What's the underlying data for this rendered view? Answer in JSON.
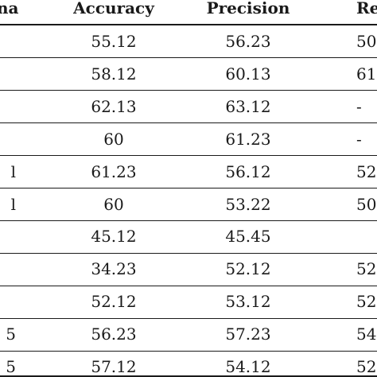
{
  "table": {
    "headers": [
      "na",
      "Accuracy",
      "Precision",
      "Re"
    ],
    "rows": [
      {
        "label": "",
        "accuracy": "55.12",
        "precision": "56.23",
        "recall": "50"
      },
      {
        "label": "",
        "accuracy": "58.12",
        "precision": "60.13",
        "recall": "61"
      },
      {
        "label": "",
        "accuracy": "62.13",
        "precision": "63.12",
        "recall": "-"
      },
      {
        "label": "",
        "accuracy": "60",
        "precision": "61.23",
        "recall": "-"
      },
      {
        "label": "l",
        "accuracy": "61.23",
        "precision": "56.12",
        "recall": "52"
      },
      {
        "label": "l",
        "accuracy": "60",
        "precision": "53.22",
        "recall": "50"
      },
      {
        "label": "",
        "accuracy": "45.12",
        "precision": "45.45",
        "recall": ""
      },
      {
        "label": "",
        "accuracy": "34.23",
        "precision": "52.12",
        "recall": "52"
      },
      {
        "label": "",
        "accuracy": "52.12",
        "precision": "53.12",
        "recall": "52"
      },
      {
        "label": "5",
        "accuracy": "56.23",
        "precision": "57.23",
        "recall": "54"
      },
      {
        "label": "5",
        "accuracy": "57.12",
        "precision": "54.12",
        "recall": "52"
      }
    ]
  }
}
